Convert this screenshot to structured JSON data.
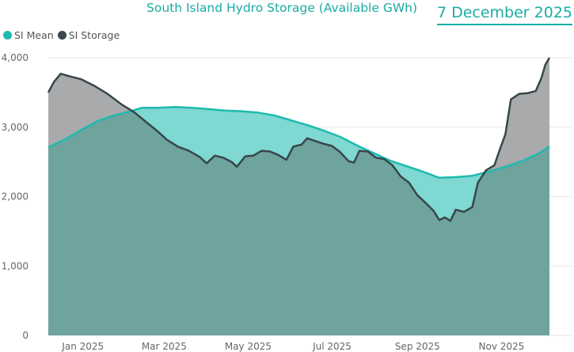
{
  "header": {
    "title": "South Island Hydro Storage (Available GWh)",
    "date": "7 December 2025"
  },
  "legend": [
    {
      "label": "SI Mean",
      "color": "#1ebaae"
    },
    {
      "label": "SI Storage",
      "color": "#37474a"
    }
  ],
  "colors": {
    "mean_line": "#1ebaae",
    "storage_line": "#37474a",
    "mean_fill": "#7fd8d2",
    "storage_fill": "#a8aaab",
    "overlap_fill": "#6fa39e",
    "title": "#1aada4"
  },
  "chart_data": {
    "type": "area",
    "title": "South Island Hydro Storage (Available GWh)",
    "xlabel": "",
    "ylabel": "",
    "ylim": [
      0,
      4000
    ],
    "y_ticks": [
      0,
      1000,
      2000,
      3000,
      4000
    ],
    "y_tick_labels": [
      "0",
      "1,000",
      "2,000",
      "3,000",
      "4,000"
    ],
    "x_range": [
      "2024-12-08",
      "2025-12-07"
    ],
    "x_ticks": [
      {
        "date": "2025-01-01",
        "label": "Jan 2025"
      },
      {
        "date": "2025-03-01",
        "label": "Mar 2025"
      },
      {
        "date": "2025-05-01",
        "label": "May 2025"
      },
      {
        "date": "2025-07-01",
        "label": "Jul 2025"
      },
      {
        "date": "2025-09-01",
        "label": "Sep 2025"
      },
      {
        "date": "2025-11-01",
        "label": "Nov 2025"
      }
    ],
    "grid": true,
    "legend_position": "top-left",
    "series": [
      {
        "name": "SI Mean",
        "points": [
          [
            "2024-12-08",
            2710
          ],
          [
            "2024-12-20",
            2820
          ],
          [
            "2025-01-01",
            2960
          ],
          [
            "2025-01-13",
            3090
          ],
          [
            "2025-01-25",
            3170
          ],
          [
            "2025-02-06",
            3230
          ],
          [
            "2025-02-14",
            3280
          ],
          [
            "2025-02-26",
            3280
          ],
          [
            "2025-03-10",
            3290
          ],
          [
            "2025-03-22",
            3280
          ],
          [
            "2025-04-03",
            3260
          ],
          [
            "2025-04-15",
            3240
          ],
          [
            "2025-04-27",
            3230
          ],
          [
            "2025-05-09",
            3210
          ],
          [
            "2025-05-21",
            3170
          ],
          [
            "2025-06-02",
            3100
          ],
          [
            "2025-06-14",
            3030
          ],
          [
            "2025-06-26",
            2950
          ],
          [
            "2025-07-08",
            2860
          ],
          [
            "2025-07-20",
            2740
          ],
          [
            "2025-08-01",
            2630
          ],
          [
            "2025-08-13",
            2520
          ],
          [
            "2025-08-25",
            2440
          ],
          [
            "2025-09-06",
            2360
          ],
          [
            "2025-09-18",
            2270
          ],
          [
            "2025-09-30",
            2280
          ],
          [
            "2025-10-12",
            2300
          ],
          [
            "2025-10-24",
            2360
          ],
          [
            "2025-11-05",
            2430
          ],
          [
            "2025-11-17",
            2510
          ],
          [
            "2025-11-29",
            2620
          ],
          [
            "2025-12-07",
            2720
          ]
        ]
      },
      {
        "name": "SI Storage",
        "points": [
          [
            "2024-12-08",
            3500
          ],
          [
            "2024-12-12",
            3650
          ],
          [
            "2024-12-17",
            3770
          ],
          [
            "2024-12-24",
            3730
          ],
          [
            "2025-01-01",
            3690
          ],
          [
            "2025-01-10",
            3600
          ],
          [
            "2025-01-20",
            3480
          ],
          [
            "2025-01-30",
            3330
          ],
          [
            "2025-02-08",
            3220
          ],
          [
            "2025-02-18",
            3060
          ],
          [
            "2025-02-26",
            2930
          ],
          [
            "2025-03-04",
            2820
          ],
          [
            "2025-03-12",
            2720
          ],
          [
            "2025-03-20",
            2660
          ],
          [
            "2025-03-28",
            2570
          ],
          [
            "2025-04-02",
            2480
          ],
          [
            "2025-04-08",
            2590
          ],
          [
            "2025-04-14",
            2560
          ],
          [
            "2025-04-20",
            2500
          ],
          [
            "2025-04-24",
            2430
          ],
          [
            "2025-04-30",
            2580
          ],
          [
            "2025-05-06",
            2590
          ],
          [
            "2025-05-12",
            2660
          ],
          [
            "2025-05-18",
            2650
          ],
          [
            "2025-05-24",
            2600
          ],
          [
            "2025-05-30",
            2530
          ],
          [
            "2025-06-04",
            2720
          ],
          [
            "2025-06-10",
            2750
          ],
          [
            "2025-06-14",
            2840
          ],
          [
            "2025-06-20",
            2800
          ],
          [
            "2025-06-26",
            2760
          ],
          [
            "2025-07-02",
            2730
          ],
          [
            "2025-07-08",
            2640
          ],
          [
            "2025-07-14",
            2510
          ],
          [
            "2025-07-18",
            2490
          ],
          [
            "2025-07-22",
            2660
          ],
          [
            "2025-07-28",
            2650
          ],
          [
            "2025-08-03",
            2560
          ],
          [
            "2025-08-09",
            2540
          ],
          [
            "2025-08-15",
            2450
          ],
          [
            "2025-08-21",
            2290
          ],
          [
            "2025-08-27",
            2200
          ],
          [
            "2025-09-02",
            2020
          ],
          [
            "2025-09-08",
            1910
          ],
          [
            "2025-09-14",
            1790
          ],
          [
            "2025-09-18",
            1660
          ],
          [
            "2025-09-22",
            1700
          ],
          [
            "2025-09-26",
            1650
          ],
          [
            "2025-09-30",
            1810
          ],
          [
            "2025-10-06",
            1780
          ],
          [
            "2025-10-12",
            1850
          ],
          [
            "2025-10-16",
            2200
          ],
          [
            "2025-10-22",
            2380
          ],
          [
            "2025-10-28",
            2450
          ],
          [
            "2025-11-01",
            2680
          ],
          [
            "2025-11-05",
            2900
          ],
          [
            "2025-11-09",
            3400
          ],
          [
            "2025-11-15",
            3480
          ],
          [
            "2025-11-21",
            3490
          ],
          [
            "2025-11-27",
            3520
          ],
          [
            "2025-12-01",
            3700
          ],
          [
            "2025-12-04",
            3900
          ],
          [
            "2025-12-07",
            4000
          ]
        ]
      }
    ]
  }
}
